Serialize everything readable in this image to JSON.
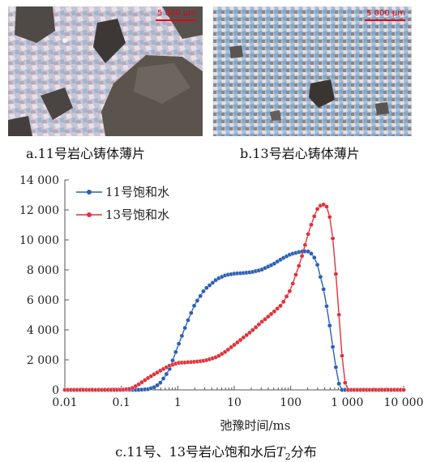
{
  "figure": {
    "micrographs": [
      {
        "scale_text": "5 000 μm",
        "caption": "a.11号岩心铸体薄片"
      },
      {
        "scale_text": "5 000 μm",
        "caption": "b.13号岩心铸体薄片"
      }
    ],
    "chart_caption_prefix": "c.11号、13号岩心饱和水后",
    "chart_caption_italic": "T",
    "chart_caption_sub": "2",
    "chart_caption_suffix": "分布"
  },
  "colors": {
    "series1": "#2b5fb4",
    "series2": "#e0313a",
    "axis": "#555555",
    "scale_bar": "#e0001b"
  },
  "chart_data": {
    "type": "line",
    "xlabel": "弛豫时间/ms",
    "ylabel": "",
    "xscale": "log",
    "xlim": [
      0.01,
      10000
    ],
    "ylim": [
      0,
      14000
    ],
    "xticks": [
      0.01,
      0.1,
      1,
      10,
      100,
      1000,
      10000
    ],
    "xtick_labels": [
      "0.01",
      "0.1",
      "1",
      "10",
      "100",
      "1 000",
      "10 000"
    ],
    "yticks": [
      0,
      2000,
      4000,
      6000,
      8000,
      10000,
      12000,
      14000
    ],
    "ytick_labels": [
      "0",
      "2 000",
      "4 000",
      "6 000",
      "8 000",
      "10 000",
      "12 000",
      "14 000"
    ],
    "legend_position": "top-left",
    "series": [
      {
        "name": "11号饱和水",
        "x": [
          0.01,
          0.1,
          0.2,
          0.3,
          0.4,
          0.5,
          0.7,
          1,
          1.5,
          2,
          3,
          5,
          7,
          10,
          15,
          20,
          30,
          50,
          70,
          100,
          150,
          200,
          250,
          300,
          400,
          500,
          600,
          700,
          800,
          1000,
          10000
        ],
        "y": [
          0,
          0,
          0,
          50,
          200,
          500,
          1300,
          2900,
          4600,
          5700,
          6700,
          7400,
          7650,
          7750,
          7800,
          7850,
          8000,
          8400,
          8750,
          9050,
          9220,
          9250,
          9000,
          8300,
          6400,
          4100,
          2000,
          500,
          0,
          0,
          0
        ]
      },
      {
        "name": "13号饱和水",
        "x": [
          0.01,
          0.1,
          0.15,
          0.2,
          0.3,
          0.5,
          0.7,
          1,
          2,
          3,
          5,
          7,
          10,
          20,
          30,
          50,
          70,
          100,
          150,
          200,
          250,
          300,
          350,
          400,
          450,
          500,
          550,
          600,
          700,
          800,
          900,
          1000,
          10000
        ],
        "y": [
          0,
          0,
          80,
          350,
          800,
          1300,
          1600,
          1800,
          1870,
          1950,
          2200,
          2550,
          3000,
          3900,
          4500,
          5200,
          5700,
          6700,
          8600,
          10300,
          11400,
          12100,
          12350,
          12350,
          12150,
          11400,
          10300,
          8800,
          5500,
          2500,
          600,
          0,
          0
        ]
      }
    ]
  }
}
